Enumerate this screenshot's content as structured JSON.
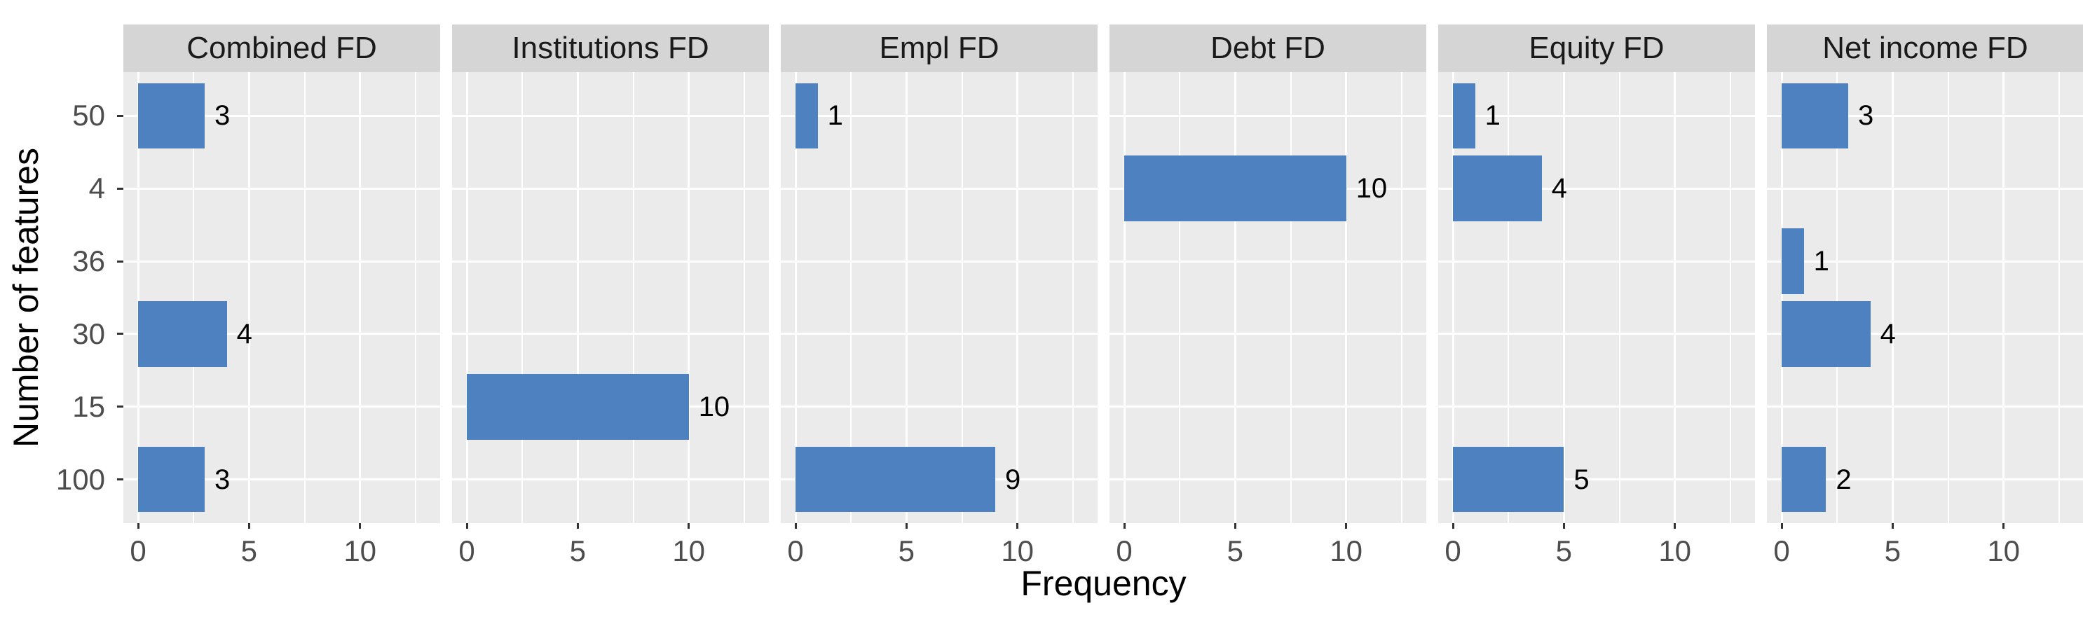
{
  "chart_data": {
    "type": "bar",
    "orientation": "horizontal",
    "xlabel": "Frequency",
    "ylabel": "Number of features",
    "categories_top_to_bottom": [
      "50",
      "4",
      "36",
      "30",
      "15",
      "100"
    ],
    "x_ticks": [
      "0",
      "5",
      "10"
    ],
    "x_tick_values": [
      0,
      5,
      10
    ],
    "x_minor_gridline_values": [
      2.5,
      7.5,
      12.5
    ],
    "xlim": [
      -0.66,
      13.73
    ],
    "grid": "on",
    "legend": "none",
    "facets": [
      {
        "title": "Combined FD",
        "bars": [
          {
            "category": "50",
            "value": 3
          },
          {
            "category": "30",
            "value": 4
          },
          {
            "category": "100",
            "value": 3
          }
        ]
      },
      {
        "title": "Institutions FD",
        "bars": [
          {
            "category": "15",
            "value": 10
          }
        ]
      },
      {
        "title": "Empl FD",
        "bars": [
          {
            "category": "50",
            "value": 1
          },
          {
            "category": "100",
            "value": 9
          }
        ]
      },
      {
        "title": "Debt FD",
        "bars": [
          {
            "category": "4",
            "value": 10
          }
        ]
      },
      {
        "title": "Equity FD",
        "bars": [
          {
            "category": "50",
            "value": 1
          },
          {
            "category": "4",
            "value": 4
          },
          {
            "category": "100",
            "value": 5
          }
        ]
      },
      {
        "title": "Net income FD",
        "bars": [
          {
            "category": "50",
            "value": 3
          },
          {
            "category": "36",
            "value": 1
          },
          {
            "category": "30",
            "value": 4
          },
          {
            "category": "100",
            "value": 2
          }
        ]
      }
    ],
    "colors": {
      "bar": "#4D81BF",
      "panel_background": "#EBEBEB",
      "strip_background": "#D5D5D5",
      "gridline": "#FFFFFF",
      "tick_label": "#4D4D4D",
      "strip_text": "#1A1A1A",
      "axis_title": "#000000",
      "page_background": "#FFFFFF"
    }
  }
}
